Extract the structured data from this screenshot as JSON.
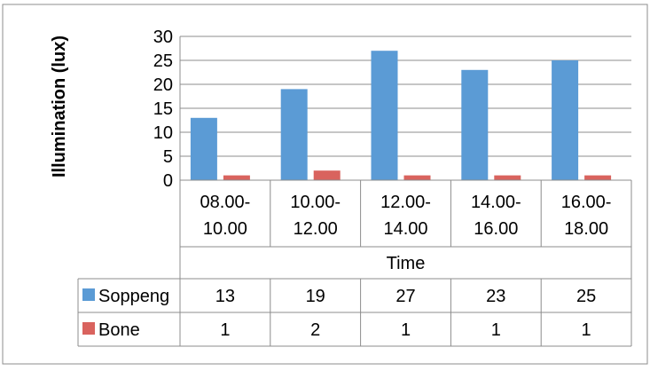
{
  "chart_data": {
    "type": "bar",
    "categories": [
      [
        "08.00-",
        "10.00"
      ],
      [
        "10.00-",
        "12.00"
      ],
      [
        "12.00-",
        "14.00"
      ],
      [
        "14.00-",
        "16.00"
      ],
      [
        "16.00-",
        "18.00"
      ]
    ],
    "series": [
      {
        "name": "Soppeng",
        "values": [
          13,
          19,
          27,
          23,
          25
        ],
        "color": "#5B9BD5"
      },
      {
        "name": "Bone",
        "values": [
          1,
          2,
          1,
          1,
          1
        ],
        "color": "#D9635E"
      }
    ],
    "xlabel": "Time",
    "ylabel": "Illumination (lux)",
    "ylim": [
      0,
      30
    ],
    "yticks": [
      0,
      5,
      10,
      15,
      20,
      25,
      30
    ],
    "grid": true,
    "data_table": true,
    "legend": "in-data-table"
  }
}
